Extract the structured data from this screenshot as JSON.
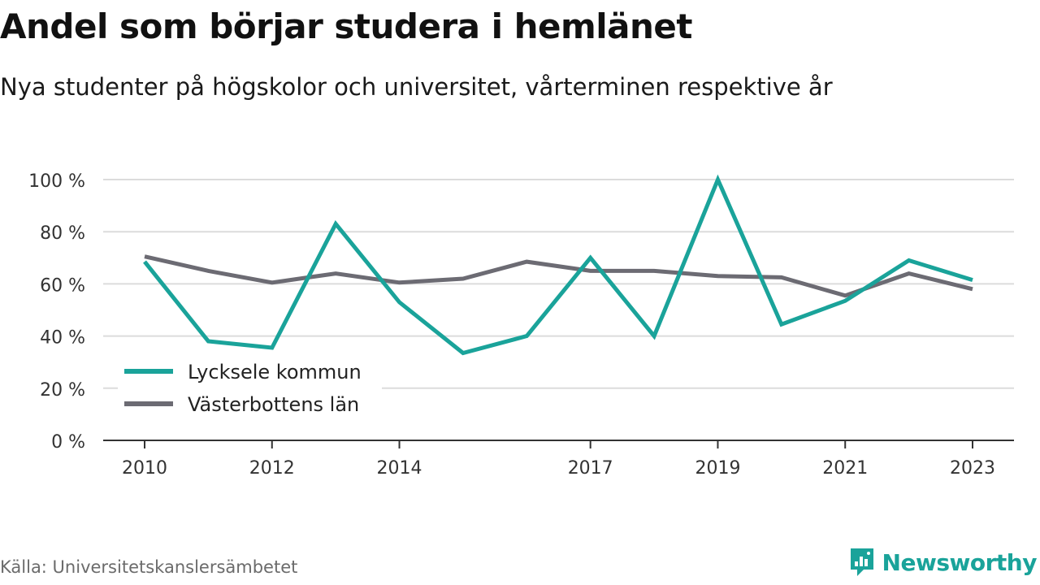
{
  "header": {
    "title": "Andel som börjar studera i hemlänet",
    "subtitle": "Nya studenter på högskolor och universitet, vårterminen respektive år"
  },
  "footer": {
    "source": "Källa: Universitetskanslersämbetet",
    "brand": "Newsworthy",
    "brand_color": "#1aa39a"
  },
  "chart_data": {
    "type": "line",
    "title": "Andel som börjar studera i hemlänet",
    "subtitle": "Nya studenter på högskolor och universitet, vårterminen respektive år",
    "x": [
      2010,
      2011,
      2012,
      2013,
      2014,
      2015,
      2016,
      2017,
      2018,
      2019,
      2020,
      2021,
      2022,
      2023
    ],
    "x_tick_labels": [
      "2010",
      "2012",
      "2014",
      "2017",
      "2019",
      "2021",
      "2023"
    ],
    "x_ticks": [
      2010,
      2012,
      2014,
      2017,
      2019,
      2021,
      2023
    ],
    "ylim": [
      0,
      100
    ],
    "y_ticks": [
      0,
      20,
      40,
      60,
      80,
      100
    ],
    "y_tick_labels": [
      "0 %",
      "20 %",
      "40 %",
      "60 %",
      "80 %",
      "100 %"
    ],
    "grid": true,
    "legend_position": "bottom-left",
    "series": [
      {
        "name": "Lycksele kommun",
        "color": "#1aa39a",
        "values": [
          68.5,
          38,
          35.5,
          83,
          53,
          33.5,
          40,
          70,
          40,
          100,
          44.5,
          53.5,
          69,
          61.5
        ]
      },
      {
        "name": "Västerbottens län",
        "color": "#6c6b73",
        "values": [
          70.5,
          65,
          60.5,
          64,
          60.5,
          62,
          68.5,
          65,
          65,
          63,
          62.5,
          55.5,
          64,
          58
        ]
      }
    ]
  }
}
